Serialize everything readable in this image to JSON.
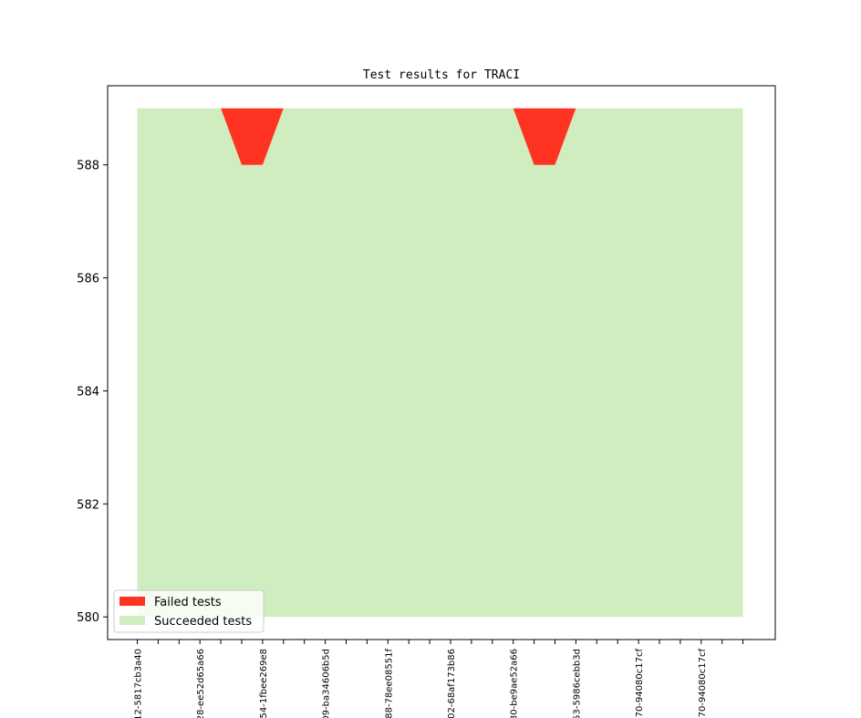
{
  "chart_data": {
    "type": "area",
    "title": "Test results for TRACI",
    "xlabel": "",
    "ylabel": "",
    "ylim": [
      579.6,
      589.4
    ],
    "yticks": [
      580,
      582,
      584,
      586,
      588
    ],
    "x_index_range": [
      0,
      29
    ],
    "xticks_labeled": [
      {
        "index": 0,
        "label": "12-5817cb3a40"
      },
      {
        "index": 3,
        "label": "28-ee52d65a66"
      },
      {
        "index": 6,
        "label": "54-1fbee269e8"
      },
      {
        "index": 9,
        "label": "09-ba34606b5d"
      },
      {
        "index": 12,
        "label": "88-78ee08551f"
      },
      {
        "index": 15,
        "label": "02-68af173b86"
      },
      {
        "index": 18,
        "label": "30-be9ae52a66"
      },
      {
        "index": 21,
        "label": "53-5986cebb3d"
      },
      {
        "index": 24,
        "label": "70-94080c17cf"
      },
      {
        "index": 27,
        "label": "70-94080c17cf"
      }
    ],
    "series": [
      {
        "name": "Succeeded tests",
        "color": "#cfedbf",
        "x": [
          0,
          4,
          5,
          6,
          7,
          18,
          19,
          20,
          21,
          29
        ],
        "y": [
          589,
          589,
          588,
          588,
          589,
          589,
          588,
          588,
          589,
          589
        ]
      },
      {
        "name": "Failed tests",
        "color": "#ff3322",
        "x": [
          0,
          4,
          5,
          6,
          7,
          18,
          19,
          20,
          21,
          29
        ],
        "y": [
          0,
          0,
          1,
          1,
          0,
          0,
          1,
          1,
          0,
          0
        ]
      }
    ],
    "total_tests": 589,
    "baseline": 580,
    "grid": false,
    "legend_position": "lower-left"
  }
}
